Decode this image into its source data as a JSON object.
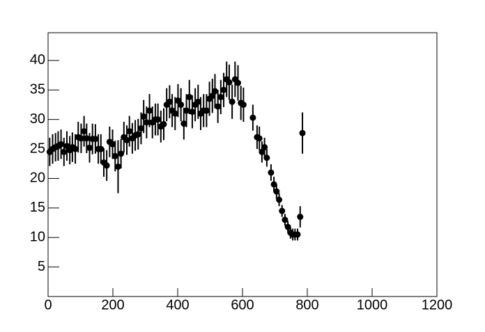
{
  "chart_data": {
    "type": "scatter",
    "color": "#000000",
    "xlim": [
      0,
      1200
    ],
    "xticks": [
      0,
      200,
      400,
      600,
      800,
      1000,
      1200
    ],
    "ylim": [
      0,
      44.7
    ],
    "yticks": [
      5,
      10,
      15,
      20,
      25,
      30,
      35,
      40
    ],
    "x": [
      5,
      14,
      23,
      31,
      40,
      49,
      58,
      67,
      75,
      84,
      93,
      102,
      111,
      119,
      128,
      137,
      146,
      155,
      163,
      172,
      181,
      190,
      199,
      207,
      216,
      225,
      234,
      243,
      251,
      260,
      269,
      278,
      287,
      295,
      304,
      313,
      322,
      331,
      339,
      348,
      357,
      366,
      375,
      383,
      392,
      401,
      410,
      419,
      427,
      436,
      445,
      454,
      463,
      471,
      480,
      489,
      498,
      507,
      515,
      524,
      533,
      542,
      551,
      559,
      568,
      577,
      586,
      595,
      603,
      632,
      645,
      652,
      660,
      668,
      675,
      688,
      697,
      705,
      713,
      722,
      731,
      740,
      748,
      755,
      762,
      770,
      778,
      785
    ],
    "values": [
      24.5,
      25,
      25.3,
      25.5,
      25.8,
      24.5,
      25.5,
      24.8,
      25.3,
      25,
      27,
      26.8,
      28,
      26.8,
      25.2,
      26.7,
      26.7,
      25,
      25,
      22.7,
      22.2,
      26.2,
      25.8,
      23.8,
      22,
      24.2,
      27,
      26.5,
      28,
      26.8,
      27.3,
      27.5,
      28.5,
      30.5,
      29.5,
      31.5,
      29.5,
      30,
      30,
      28.8,
      29.2,
      32.5,
      33,
      31.5,
      31,
      33.2,
      32.5,
      29.3,
      31.5,
      33.8,
      31.3,
      32.5,
      33,
      31,
      31.5,
      31.5,
      33.5,
      34,
      34.8,
      32.2,
      33.8,
      35,
      36.8,
      36.3,
      33,
      36.8,
      36.2,
      32.8,
      32.5,
      30.3,
      27,
      26.8,
      24.5,
      25.3,
      23.5,
      21,
      19,
      17.8,
      16.4,
      14.5,
      13,
      11.8,
      10.8,
      10.5,
      10.5,
      10.5,
      13.5,
      27.7
    ],
    "errors": [
      2.4,
      2.5,
      2.4,
      2.5,
      2.5,
      2.4,
      2.5,
      2.4,
      2.5,
      2.5,
      2.6,
      2.5,
      2.6,
      2.5,
      2.5,
      2.6,
      2.5,
      2.5,
      2.5,
      2.4,
      2.6,
      2.6,
      2.5,
      2.6,
      4.5,
      2.5,
      2.6,
      2.5,
      2.6,
      2.6,
      2.6,
      2.6,
      2.7,
      2.8,
      2.7,
      2.8,
      2.7,
      2.7,
      2.7,
      2.7,
      2.7,
      2.8,
      2.8,
      2.8,
      2.8,
      2.8,
      2.8,
      2.7,
      2.8,
      2.9,
      2.8,
      2.8,
      2.9,
      2.8,
      2.8,
      2.8,
      2.9,
      2.9,
      2.9,
      2.8,
      2.9,
      2.9,
      3,
      3,
      2.9,
      3,
      3,
      2.9,
      2.9,
      2.2,
      2,
      2,
      1.8,
      1.6,
      1.5,
      1.4,
      1.3,
      1.2,
      1.1,
      1,
      1,
      1,
      1,
      1,
      1,
      1,
      1.8,
      3.5
    ]
  }
}
